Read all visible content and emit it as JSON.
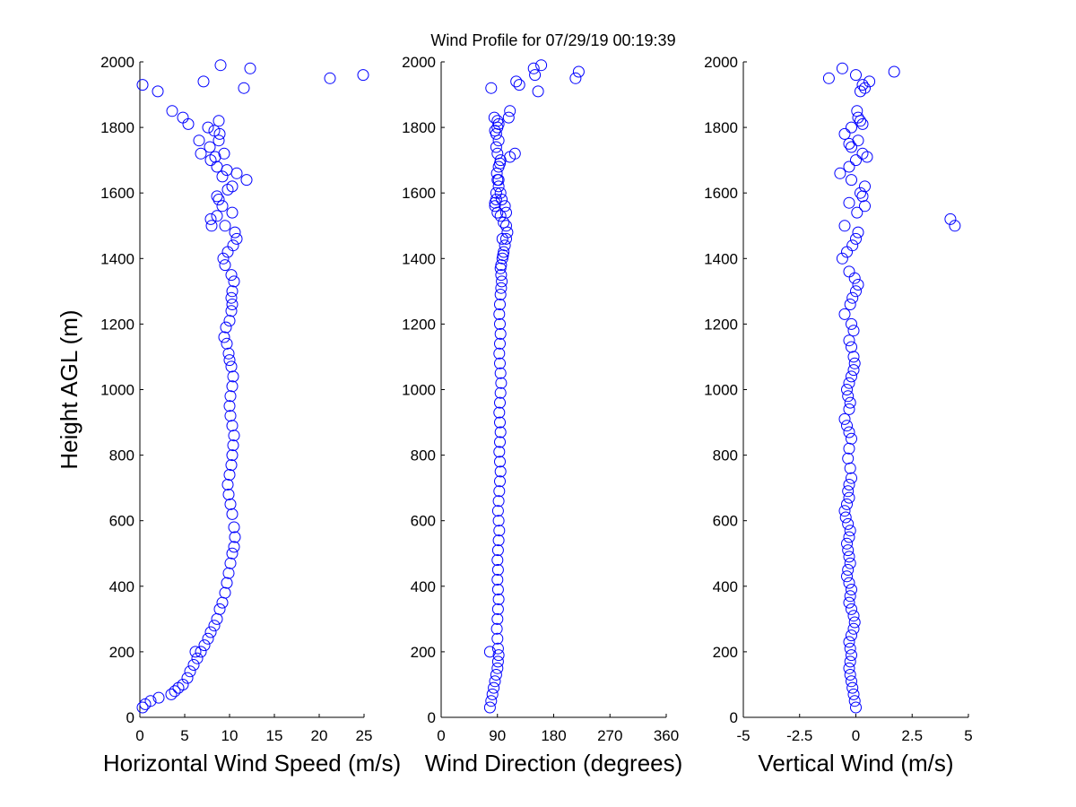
{
  "figure": {
    "title": "Wind Profile for  07/29/19 00:19:39",
    "background": "#ffffff",
    "marker_color": "#0000ff"
  },
  "chart_data": [
    {
      "type": "scatter",
      "xlabel": "Horizontal Wind Speed (m/s)",
      "ylabel": "Height AGL (m)",
      "xlim": [
        0,
        25
      ],
      "ylim": [
        0,
        2000
      ],
      "xticks": [
        "0",
        "5",
        "10",
        "15",
        "20",
        "25"
      ],
      "yticks": [
        "0",
        "200",
        "400",
        "600",
        "800",
        "1000",
        "1200",
        "1400",
        "1600",
        "1800",
        "2000"
      ],
      "marker": "open-circle",
      "color": "#0000ff",
      "grid": false,
      "series": [
        {
          "x": [
            0.3,
            0.6,
            1.2,
            2.1,
            3.5,
            3.9,
            4.3,
            4.8,
            5.3,
            5.6,
            6.0,
            6.4,
            6.8,
            7.2,
            7.6,
            7.9,
            8.3,
            8.6,
            8.9,
            9.2,
            9.5,
            9.7,
            9.9,
            10.1,
            10.3,
            10.5,
            10.6,
            10.5,
            10.3,
            10.1,
            9.9,
            9.8,
            10.0,
            10.2,
            10.3,
            10.4,
            10.5,
            10.3,
            10.1,
            10.0,
            10.1,
            10.3,
            10.4,
            10.2,
            10.0,
            9.9,
            9.7,
            9.4,
            9.6,
            10.0,
            10.2,
            10.3,
            10.2,
            10.3,
            10.5,
            10.2,
            9.5,
            9.3,
            9.8,
            10.4,
            10.8,
            10.6,
            9.5,
            8.0,
            7.9,
            8.6,
            10.3,
            9.2,
            8.8,
            8.6,
            9.8,
            10.3,
            11.9,
            9.2,
            10.8,
            9.7,
            8.6,
            7.9,
            8.4,
            6.8,
            9.4,
            7.8,
            6.6,
            8.8,
            8.9,
            8.3,
            7.6,
            8.8,
            5.4,
            4.8,
            3.6,
            2.0,
            0.3,
            7.1,
            21.2,
            11.6,
            24.9,
            12.3,
            9.0,
            6.2
          ],
          "y": [
            30,
            40,
            50,
            60,
            70,
            80,
            90,
            100,
            120,
            140,
            160,
            180,
            200,
            220,
            240,
            260,
            280,
            300,
            330,
            350,
            380,
            410,
            440,
            470,
            500,
            520,
            550,
            580,
            620,
            650,
            680,
            710,
            740,
            770,
            800,
            830,
            860,
            890,
            920,
            950,
            980,
            1010,
            1040,
            1070,
            1090,
            1110,
            1140,
            1160,
            1190,
            1210,
            1240,
            1260,
            1280,
            1300,
            1330,
            1350,
            1380,
            1400,
            1420,
            1440,
            1460,
            1480,
            1500,
            1500,
            1520,
            1530,
            1540,
            1560,
            1580,
            1590,
            1610,
            1620,
            1640,
            1650,
            1660,
            1670,
            1680,
            1700,
            1710,
            1720,
            1720,
            1740,
            1760,
            1760,
            1780,
            1790,
            1800,
            1820,
            1810,
            1830,
            1850,
            1910,
            1930,
            1940,
            1950,
            1920,
            1960,
            1980,
            1990,
            200
          ]
        }
      ]
    },
    {
      "type": "scatter",
      "xlabel": "Wind Direction (degrees)",
      "ylabel": "",
      "xlim": [
        0,
        360
      ],
      "ylim": [
        0,
        2000
      ],
      "xticks": [
        "0",
        "90",
        "180",
        "270",
        "360"
      ],
      "yticks": [
        "0",
        "200",
        "400",
        "600",
        "800",
        "1000",
        "1200",
        "1400",
        "1600",
        "1800",
        "2000"
      ],
      "marker": "open-circle",
      "color": "#0000ff",
      "grid": false,
      "series": [
        {
          "x": [
            78,
            80,
            82,
            84,
            86,
            88,
            90,
            91,
            92,
            91,
            90,
            89,
            90,
            91,
            92,
            91,
            90,
            91,
            90,
            91,
            92,
            93,
            92,
            91,
            92,
            93,
            94,
            95,
            94,
            93,
            94,
            95,
            94,
            93,
            94,
            95,
            96,
            95,
            94,
            93,
            94,
            95,
            94,
            93,
            94,
            95,
            96,
            97,
            96,
            95,
            96,
            98,
            99,
            100,
            102,
            104,
            106,
            104,
            100,
            98,
            95,
            90,
            86,
            97,
            102,
            104,
            95,
            92,
            90,
            89,
            92,
            94,
            95,
            90,
            88,
            92,
            88,
            86,
            90,
            90,
            110,
            118,
            85,
            92,
            88,
            86,
            88,
            92,
            108,
            110,
            125,
            155,
            80,
            120,
            215,
            148,
            220,
            160,
            150,
            78
          ],
          "y": [
            30,
            50,
            70,
            90,
            110,
            130,
            150,
            170,
            190,
            210,
            240,
            270,
            300,
            330,
            360,
            390,
            420,
            450,
            480,
            510,
            540,
            570,
            600,
            630,
            660,
            690,
            720,
            750,
            780,
            810,
            840,
            870,
            900,
            930,
            960,
            990,
            1020,
            1050,
            1080,
            1110,
            1140,
            1170,
            1200,
            1230,
            1260,
            1290,
            1310,
            1330,
            1350,
            1370,
            1380,
            1400,
            1410,
            1420,
            1440,
            1460,
            1480,
            1500,
            1510,
            1460,
            1530,
            1540,
            1570,
            1580,
            1560,
            1540,
            1600,
            1620,
            1640,
            1660,
            1680,
            1690,
            1700,
            1720,
            1740,
            1760,
            1780,
            1790,
            1800,
            1820,
            1710,
            1720,
            1830,
            1810,
            1580,
            1560,
            1600,
            1640,
            1830,
            1850,
            1930,
            1910,
            1920,
            1940,
            1950,
            1980,
            1970,
            1990,
            1960,
            200
          ]
        }
      ]
    },
    {
      "type": "scatter",
      "xlabel": "Vertical Wind (m/s)",
      "ylabel": "",
      "xlim": [
        -5,
        5
      ],
      "ylim": [
        0,
        2000
      ],
      "xticks": [
        "-5",
        "-2.5",
        "0",
        "2.5",
        "5"
      ],
      "yticks": [
        "0",
        "200",
        "400",
        "600",
        "800",
        "1000",
        "1200",
        "1400",
        "1600",
        "1800",
        "2000"
      ],
      "marker": "open-circle",
      "color": "#0000ff",
      "grid": false,
      "series": [
        {
          "x": [
            0.0,
            -0.05,
            -0.1,
            -0.15,
            -0.2,
            -0.25,
            -0.3,
            -0.25,
            -0.2,
            -0.25,
            -0.3,
            -0.2,
            -0.1,
            -0.05,
            -0.1,
            -0.2,
            -0.3,
            -0.25,
            -0.2,
            -0.3,
            -0.4,
            -0.35,
            -0.25,
            -0.3,
            -0.35,
            -0.4,
            -0.3,
            -0.25,
            -0.35,
            -0.45,
            -0.5,
            -0.4,
            -0.3,
            -0.35,
            -0.3,
            -0.2,
            -0.25,
            -0.35,
            -0.3,
            -0.2,
            -0.3,
            -0.4,
            -0.5,
            -0.3,
            -0.25,
            -0.35,
            -0.4,
            -0.3,
            -0.2,
            -0.1,
            -0.05,
            -0.1,
            -0.2,
            -0.3,
            -0.1,
            -0.2,
            -0.5,
            -0.25,
            -0.15,
            0.0,
            0.1,
            -0.05,
            -0.3,
            -0.6,
            -0.4,
            -0.15,
            0.0,
            -0.5,
            0.1,
            0.4,
            0.3,
            0.2,
            0.4,
            -0.2,
            -0.7,
            -0.3,
            0.0,
            0.5,
            0.3,
            -0.2,
            0.1,
            -0.5,
            -0.2,
            0.3,
            0.2,
            0.1,
            0.05,
            0.3,
            0.2,
            0.6,
            -1.2,
            -0.6,
            0.0,
            1.7,
            0.4,
            4.2,
            4.4,
            0.05,
            -0.3,
            -0.3
          ],
          "y": [
            30,
            50,
            70,
            90,
            110,
            130,
            150,
            170,
            190,
            210,
            230,
            250,
            270,
            290,
            310,
            330,
            350,
            370,
            390,
            410,
            430,
            450,
            470,
            490,
            510,
            530,
            550,
            570,
            590,
            610,
            630,
            650,
            670,
            690,
            710,
            730,
            760,
            790,
            820,
            850,
            870,
            890,
            910,
            940,
            960,
            980,
            1000,
            1020,
            1040,
            1060,
            1080,
            1100,
            1130,
            1150,
            1180,
            1200,
            1230,
            1260,
            1280,
            1300,
            1320,
            1340,
            1360,
            1400,
            1420,
            1440,
            1460,
            1500,
            1480,
            1560,
            1590,
            1600,
            1620,
            1640,
            1660,
            1680,
            1700,
            1710,
            1720,
            1740,
            1760,
            1780,
            1800,
            1810,
            1820,
            1830,
            1850,
            1930,
            1910,
            1940,
            1950,
            1980,
            1960,
            1970,
            1920,
            1520,
            1500,
            1540,
            1570,
            1750
          ]
        }
      ]
    }
  ]
}
